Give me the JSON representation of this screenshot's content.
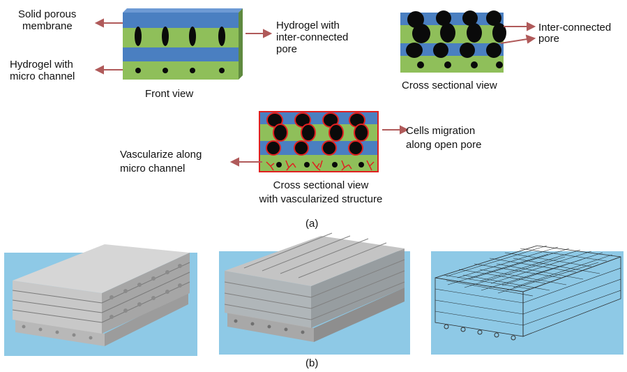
{
  "panel_a": {
    "front_view": {
      "caption": "Front view",
      "label_membrane": [
        "Solid porous",
        "membrane"
      ],
      "label_channel": [
        "Hydrogel with",
        "micro channel"
      ],
      "label_pore": [
        "Hydrogel with",
        "inter-connected",
        "pore"
      ]
    },
    "cross_section": {
      "caption": "Cross sectional view",
      "label_pore": [
        "Inter-connected",
        "pore"
      ]
    },
    "vascularized": {
      "caption": [
        "Cross sectional view",
        "with vascularized structure"
      ],
      "label_vascularize": [
        "Vascularize along",
        "micro channel"
      ],
      "label_migration": [
        "Cells migration",
        "along open pore"
      ]
    },
    "panel_label": "(a)"
  },
  "panel_b": {
    "panel_label": "(b)"
  },
  "colors": {
    "membrane_blue": "#4a7fc1",
    "hydrogel_green": "#8fbf5a",
    "pore_black": "#0a0a0a",
    "arrow_red": "#b05a5a",
    "vessel_red": "#e02020",
    "render_sky": "#8ec9e6"
  }
}
